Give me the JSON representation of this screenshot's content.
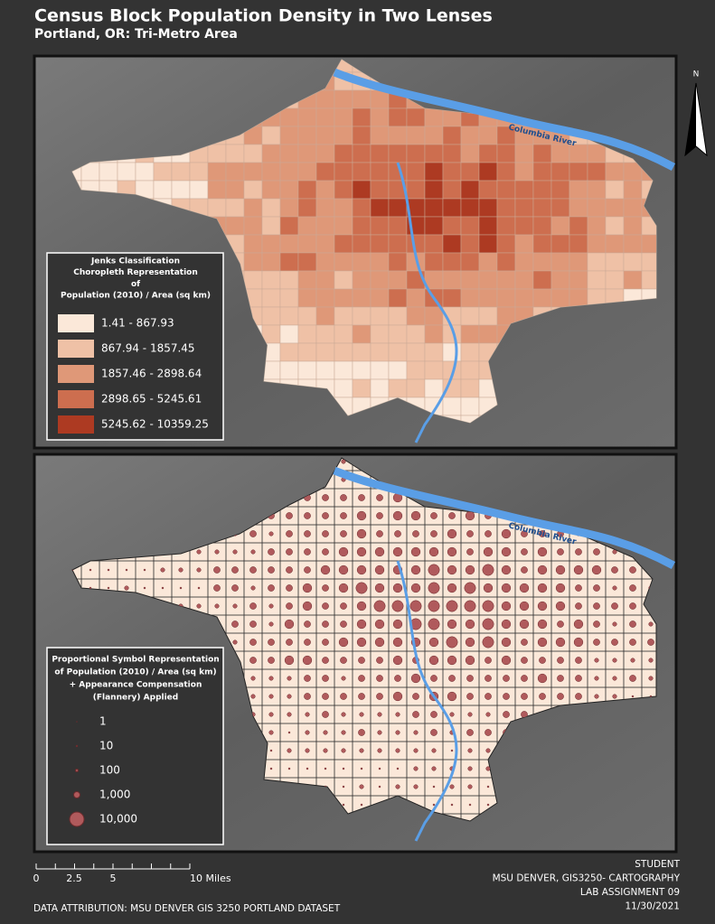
{
  "header": {
    "title": "Census Block Population Density in Two Lenses",
    "subtitle": "Portland, OR: Tri-Metro Area"
  },
  "north_label": "N",
  "river_labels": [
    "Columbia River",
    "Columbia River"
  ],
  "choropleth_legend": {
    "title_lines": [
      "Jenks Classification",
      "Choropleth Representation",
      "of",
      "Population (2010) / Area (sq km)"
    ],
    "classes": [
      {
        "label": "1.41 - 867.93",
        "color": "#fbe8d9"
      },
      {
        "label": "867.94 - 1857.45",
        "color": "#efc1a6"
      },
      {
        "label": "1857.46 - 2898.64",
        "color": "#df9878"
      },
      {
        "label": "2898.65 - 5245.61",
        "color": "#cd6e4f"
      },
      {
        "label": "5245.62 - 10359.25",
        "color": "#ad3a22"
      }
    ]
  },
  "symbol_legend": {
    "title_lines": [
      "Proportional Symbol Representation",
      "of Population (2010) / Area (sq km)",
      "+ Appearance Compensation",
      "(Flannery) Applied"
    ],
    "symbols": [
      "1",
      "10",
      "100",
      "1,000",
      "10,000"
    ],
    "color": "#b05a5c"
  },
  "scale_bar": {
    "labels": [
      "0",
      "2.5",
      "5",
      "10 Miles"
    ]
  },
  "footer": {
    "credits": [
      "STUDENT",
      "MSU DENVER, GIS3250- CARTOGRAPHY",
      "LAB ASSIGNMENT 09",
      "11/30/2021"
    ],
    "attribution": "DATA ATTRIBUTION:  MSU DENVER GIS 3250 PORTLAND DATASET"
  }
}
